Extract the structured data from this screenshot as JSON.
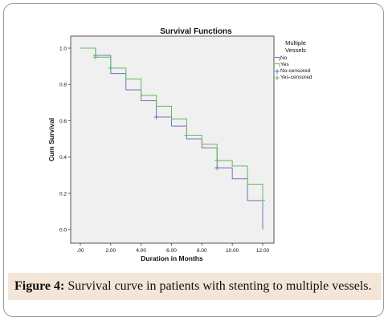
{
  "chart_data": {
    "type": "line",
    "title": "Survival Functions",
    "xlabel": "Duration in Months",
    "ylabel": "Cum Survival",
    "xlim": [
      0,
      12
    ],
    "ylim": [
      0,
      1.0
    ],
    "x_ticks": [
      ".00",
      "2.00",
      "4.00",
      "6.00",
      "8.00",
      "10.00",
      "12.00"
    ],
    "y_ticks": [
      "0.0",
      "0.2",
      "0.4",
      "0.6",
      "0.8",
      "1.0"
    ],
    "x_tick_values": [
      0,
      2,
      4,
      6,
      8,
      10,
      12
    ],
    "y_tick_values": [
      0,
      0.2,
      0.4,
      0.6,
      0.8,
      1.0
    ],
    "grid": false,
    "legend": {
      "position": "right",
      "title": "Multiple\nVessels",
      "entries": [
        "No",
        "Yes",
        "No-censored",
        "Yes-censored"
      ]
    },
    "series": [
      {
        "name": "No",
        "color": "#6f73b8",
        "x": [
          0,
          1,
          2,
          3,
          4,
          5,
          6,
          7,
          8,
          9,
          10,
          11,
          12
        ],
        "y": [
          1.0,
          0.96,
          0.86,
          0.77,
          0.71,
          0.62,
          0.57,
          0.5,
          0.45,
          0.34,
          0.28,
          0.16,
          0.0
        ],
        "censored_x": [
          1,
          5,
          9
        ],
        "censored_y": [
          0.96,
          0.62,
          0.34
        ]
      },
      {
        "name": "Yes",
        "color": "#5dbb5d",
        "x": [
          0,
          1,
          2,
          3,
          4,
          5,
          6,
          7,
          8,
          9,
          10,
          11,
          12
        ],
        "y": [
          1.0,
          0.95,
          0.89,
          0.83,
          0.74,
          0.68,
          0.61,
          0.52,
          0.47,
          0.38,
          0.35,
          0.25,
          0.16
        ],
        "censored_x": [
          1,
          2,
          7,
          9,
          12
        ],
        "censored_y": [
          0.95,
          0.89,
          0.52,
          0.38,
          0.16
        ]
      }
    ]
  },
  "caption": {
    "label": "Figure 4:",
    "text": " Survival curve in patients with stenting to multiple vessels."
  }
}
